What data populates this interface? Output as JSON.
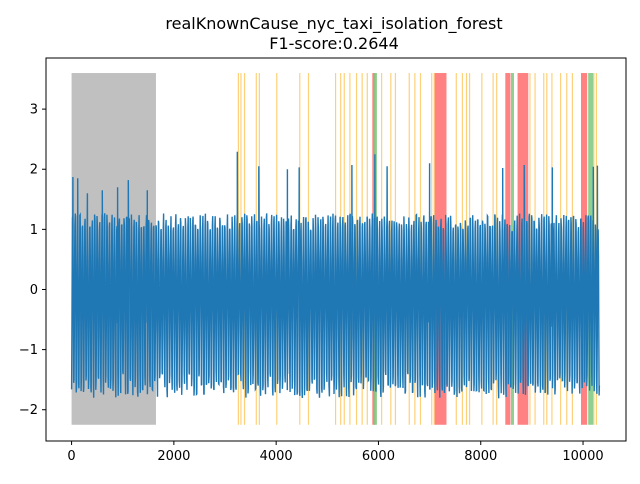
{
  "chart_data": {
    "type": "line",
    "title_line1": "realKnownCause_nyc_taxi_isolation_forest",
    "title_line2": "F1-score:0.2644",
    "xlim": [
      -500,
      10840
    ],
    "ylim": [
      -2.52,
      3.85
    ],
    "x_ticks": [
      0,
      2000,
      4000,
      6000,
      8000,
      10000
    ],
    "y_ticks": [
      -2,
      -1,
      0,
      1,
      2,
      3
    ],
    "series": [
      {
        "color": "#1f77b4",
        "n_points": 10320,
        "x_range": [
          0,
          10320
        ],
        "typical_min": -1.85,
        "typical_max": 1.5,
        "spikes": [
          {
            "x": 25,
            "y": 1.87
          },
          {
            "x": 120,
            "y": 1.85
          },
          {
            "x": 310,
            "y": 1.6
          },
          {
            "x": 600,
            "y": 1.65
          },
          {
            "x": 900,
            "y": 1.7
          },
          {
            "x": 1110,
            "y": 1.82
          },
          {
            "x": 1480,
            "y": 1.65
          },
          {
            "x": 3240,
            "y": 2.29
          },
          {
            "x": 3660,
            "y": 2.05
          },
          {
            "x": 4450,
            "y": 2.03
          },
          {
            "x": 4220,
            "y": 2.0
          },
          {
            "x": 5480,
            "y": 2.07
          },
          {
            "x": 5930,
            "y": 2.25
          },
          {
            "x": 6170,
            "y": 2.05
          },
          {
            "x": 7000,
            "y": 2.1
          },
          {
            "x": 8430,
            "y": 2.02
          },
          {
            "x": 8850,
            "y": 2.07
          },
          {
            "x": 9400,
            "y": 2.03
          },
          {
            "x": 10200,
            "y": 2.04
          },
          {
            "x": 10280,
            "y": 2.06
          }
        ]
      }
    ],
    "gray_region": {
      "x_start": 0,
      "x_end": 1650,
      "color": "#c0c0c0"
    },
    "span_ymin": -2.25,
    "span_ymax": 3.6,
    "orange_spans": [
      [
        3250,
        3265
      ],
      [
        3300,
        3315
      ],
      [
        3370,
        3385
      ],
      [
        3600,
        3615
      ],
      [
        3660,
        3672
      ],
      [
        4000,
        4012
      ],
      [
        4450,
        4465
      ],
      [
        4620,
        4632
      ],
      [
        5150,
        5160
      ],
      [
        5250,
        5262
      ],
      [
        5320,
        5330
      ],
      [
        5430,
        5445
      ],
      [
        5560,
        5570
      ],
      [
        5670,
        5680
      ],
      [
        5770,
        5782
      ],
      [
        6050,
        6062
      ],
      [
        6230,
        6242
      ],
      [
        6320,
        6332
      ],
      [
        6590,
        6600
      ],
      [
        6700,
        6710
      ],
      [
        6810,
        6822
      ],
      [
        7030,
        7042
      ],
      [
        7080,
        7092
      ],
      [
        7510,
        7522
      ],
      [
        7630,
        7642
      ],
      [
        7710,
        7722
      ],
      [
        7770,
        7782
      ],
      [
        8010,
        8022
      ],
      [
        8230,
        8242
      ],
      [
        8300,
        8312
      ],
      [
        8950,
        8962
      ],
      [
        9050,
        9062
      ],
      [
        9220,
        9232
      ],
      [
        9280,
        9292
      ],
      [
        9380,
        9392
      ],
      [
        9550,
        9562
      ],
      [
        9670,
        9682
      ],
      [
        9780,
        9790
      ],
      [
        10200,
        10212
      ],
      [
        10250,
        10262
      ]
    ],
    "red_spans": [
      [
        5880,
        5940
      ],
      [
        7100,
        7330
      ],
      [
        8480,
        8580
      ],
      [
        8720,
        8930
      ],
      [
        9960,
        10080
      ]
    ],
    "green_spans": [
      [
        5910,
        5970
      ],
      [
        8590,
        8650
      ],
      [
        10100,
        10200
      ]
    ],
    "colors": {
      "orange": "#fdc963",
      "red": "#ff6b6b",
      "green": "#7cc77c",
      "line": "#1f77b4"
    }
  }
}
